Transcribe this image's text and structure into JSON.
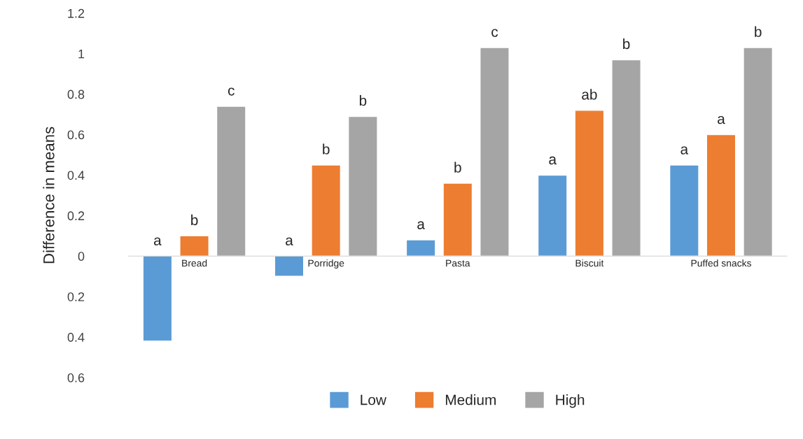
{
  "chart_data": {
    "type": "bar",
    "ylabel": "Difference in means",
    "categories": [
      "Bread",
      "Porridge",
      "Pasta",
      "Biscuit",
      "Puffed snacks"
    ],
    "series": [
      {
        "name": "Low",
        "color": "#5b9bd5",
        "values": [
          -0.42,
          -0.1,
          0.08,
          0.4,
          0.45
        ],
        "value_labels": [
          "a",
          "a",
          "a",
          "a",
          "a"
        ]
      },
      {
        "name": "Medium",
        "color": "#ed7d31",
        "values": [
          0.1,
          0.45,
          0.36,
          0.72,
          0.6
        ],
        "value_labels": [
          "b",
          "b",
          "b",
          "ab",
          "a"
        ]
      },
      {
        "name": "High",
        "color": "#a5a5a5",
        "values": [
          0.74,
          0.69,
          1.03,
          0.97,
          1.03
        ],
        "value_labels": [
          "c",
          "b",
          "c",
          "b",
          "b"
        ]
      }
    ],
    "ylim": [
      -0.6,
      1.2
    ],
    "yticks": [
      {
        "value": -0.6,
        "label": "0.6"
      },
      {
        "value": -0.4,
        "label": "0.4"
      },
      {
        "value": -0.2,
        "label": "0.2"
      },
      0,
      0.2,
      0.4,
      0.6,
      0.8,
      1,
      1.2
    ],
    "grid": false,
    "legend": "bottom"
  }
}
